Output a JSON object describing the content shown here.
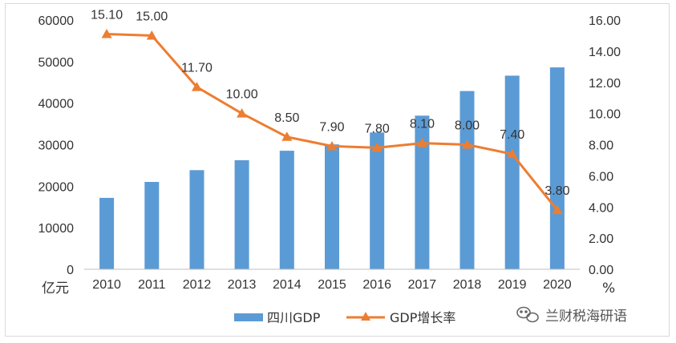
{
  "chart_data": {
    "type": "bar",
    "categories": [
      "2010",
      "2011",
      "2012",
      "2013",
      "2014",
      "2015",
      "2016",
      "2017",
      "2018",
      "2019",
      "2020"
    ],
    "series": [
      {
        "name": "四川GDP",
        "type": "bar",
        "axis": "left",
        "color": "#5b9bd5",
        "values": [
          17185,
          21027,
          23872,
          26260,
          28537,
          30053,
          32935,
          36980,
          42902,
          46616,
          48599
        ]
      },
      {
        "name": "GDP增长率",
        "type": "line",
        "axis": "right",
        "color": "#ed7d31",
        "marker": "triangle",
        "values": [
          15.1,
          15.0,
          11.7,
          10.0,
          8.5,
          7.9,
          7.8,
          8.1,
          8.0,
          7.4,
          3.8
        ],
        "labels": [
          "15.10",
          "15.00",
          "11.70",
          "10.00",
          "8.50",
          "7.90",
          "7.80",
          "8.10",
          "8.00",
          "7.40",
          "3.80"
        ]
      }
    ],
    "y_left": {
      "ticks": [
        "0",
        "10000",
        "20000",
        "30000",
        "40000",
        "50000",
        "60000"
      ],
      "lim": [
        0,
        60000
      ],
      "unit": "亿元"
    },
    "y_right": {
      "ticks": [
        "0.00",
        "2.00",
        "4.00",
        "6.00",
        "8.00",
        "10.00",
        "12.00",
        "14.00",
        "16.00"
      ],
      "lim": [
        0,
        16
      ],
      "unit": "%"
    },
    "grid": false,
    "legend_position": "bottom"
  },
  "watermark": {
    "text": "兰财税海研语",
    "icon": "wechat-icon"
  }
}
